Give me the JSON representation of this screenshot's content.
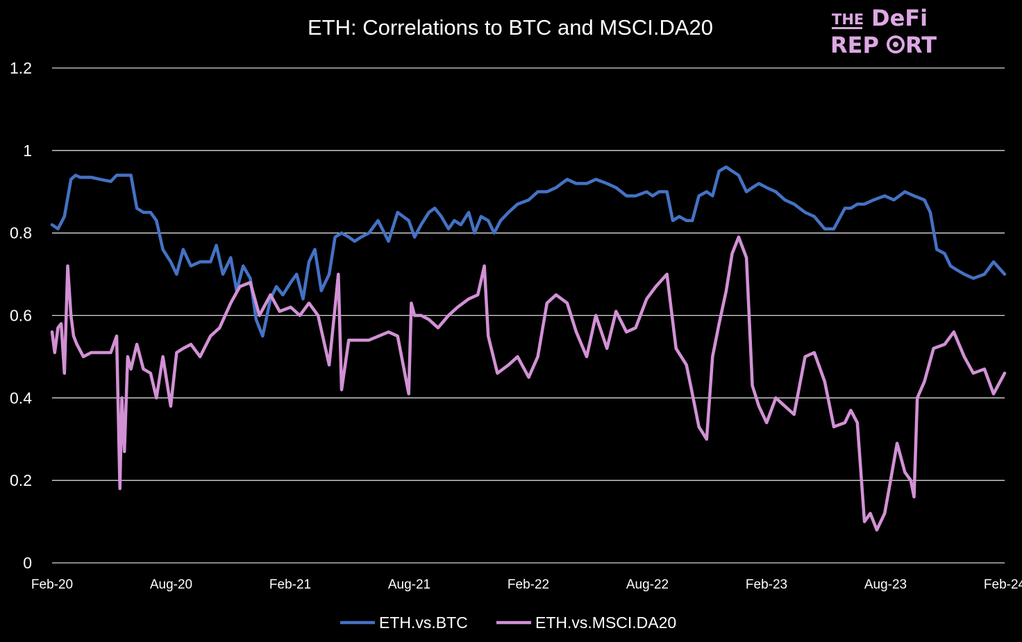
{
  "logo": {
    "line1a": "THE",
    "line1b": "DeFi",
    "line2a": "REP",
    "line2b": "RT",
    "color": "#dda8e4"
  },
  "chart_data": {
    "type": "line",
    "title": "ETH: Correlations to BTC and MSCI.DA20",
    "xlabel": "",
    "ylabel": "",
    "ylim": [
      0,
      1.2
    ],
    "yticks": [
      "0",
      "0.2",
      "0.4",
      "0.6",
      "0.8",
      "1",
      "1.2"
    ],
    "xticks": [
      "Feb-20",
      "Aug-20",
      "Feb-21",
      "Aug-21",
      "Feb-22",
      "Aug-22",
      "Feb-23",
      "Aug-23",
      "Feb-24"
    ],
    "xrange": [
      "2020-02",
      "2024-02"
    ],
    "grid": true,
    "legend_position": "bottom",
    "background": "#000000",
    "series": [
      {
        "name": "ETH.vs.BTC",
        "color": "#4472c4",
        "x": [
          "2020-02-01",
          "2020-02-10",
          "2020-02-20",
          "2020-03-01",
          "2020-03-08",
          "2020-03-15",
          "2020-04-01",
          "2020-04-15",
          "2020-05-01",
          "2020-05-10",
          "2020-05-20",
          "2020-06-01",
          "2020-06-10",
          "2020-06-20",
          "2020-07-01",
          "2020-07-10",
          "2020-07-20",
          "2020-08-01",
          "2020-08-10",
          "2020-08-20",
          "2020-09-01",
          "2020-09-15",
          "2020-10-01",
          "2020-10-10",
          "2020-10-20",
          "2020-11-01",
          "2020-11-10",
          "2020-11-20",
          "2020-12-01",
          "2020-12-10",
          "2020-12-20",
          "2021-01-01",
          "2021-01-10",
          "2021-01-20",
          "2021-02-01",
          "2021-02-10",
          "2021-02-20",
          "2021-03-01",
          "2021-03-10",
          "2021-03-20",
          "2021-04-01",
          "2021-04-10",
          "2021-04-20",
          "2021-05-01",
          "2021-05-10",
          "2021-05-20",
          "2021-06-01",
          "2021-06-15",
          "2021-07-01",
          "2021-07-15",
          "2021-08-01",
          "2021-08-10",
          "2021-08-20",
          "2021-09-01",
          "2021-09-10",
          "2021-09-20",
          "2021-10-01",
          "2021-10-10",
          "2021-10-20",
          "2021-11-01",
          "2021-11-10",
          "2021-11-20",
          "2021-12-01",
          "2021-12-10",
          "2021-12-20",
          "2022-01-01",
          "2022-01-15",
          "2022-02-01",
          "2022-02-15",
          "2022-03-01",
          "2022-03-15",
          "2022-04-01",
          "2022-04-15",
          "2022-05-01",
          "2022-05-15",
          "2022-06-01",
          "2022-06-15",
          "2022-07-01",
          "2022-07-15",
          "2022-08-01",
          "2022-08-10",
          "2022-08-20",
          "2022-09-01",
          "2022-09-10",
          "2022-09-20",
          "2022-10-01",
          "2022-10-10",
          "2022-10-20",
          "2022-11-01",
          "2022-11-10",
          "2022-11-20",
          "2022-12-01",
          "2022-12-10",
          "2022-12-20",
          "2023-01-01",
          "2023-01-10",
          "2023-01-20",
          "2023-02-01",
          "2023-02-15",
          "2023-03-01",
          "2023-03-15",
          "2023-04-01",
          "2023-04-15",
          "2023-05-01",
          "2023-05-15",
          "2023-06-01",
          "2023-06-10",
          "2023-06-20",
          "2023-07-01",
          "2023-07-15",
          "2023-08-01",
          "2023-08-15",
          "2023-09-01",
          "2023-09-15",
          "2023-10-01",
          "2023-10-10",
          "2023-10-20",
          "2023-11-01",
          "2023-11-10",
          "2023-11-20",
          "2023-12-01",
          "2023-12-15",
          "2024-01-01",
          "2024-01-15",
          "2024-02-01"
        ],
        "values": [
          0.82,
          0.81,
          0.84,
          0.93,
          0.94,
          0.935,
          0.935,
          0.93,
          0.925,
          0.94,
          0.94,
          0.94,
          0.86,
          0.85,
          0.85,
          0.83,
          0.76,
          0.73,
          0.7,
          0.76,
          0.72,
          0.73,
          0.73,
          0.77,
          0.7,
          0.74,
          0.66,
          0.72,
          0.69,
          0.59,
          0.55,
          0.64,
          0.67,
          0.65,
          0.68,
          0.7,
          0.64,
          0.73,
          0.76,
          0.66,
          0.7,
          0.79,
          0.8,
          0.79,
          0.78,
          0.79,
          0.8,
          0.83,
          0.78,
          0.85,
          0.83,
          0.79,
          0.82,
          0.85,
          0.86,
          0.84,
          0.81,
          0.83,
          0.82,
          0.85,
          0.8,
          0.84,
          0.83,
          0.8,
          0.83,
          0.85,
          0.87,
          0.88,
          0.9,
          0.9,
          0.91,
          0.93,
          0.92,
          0.92,
          0.93,
          0.92,
          0.91,
          0.89,
          0.89,
          0.9,
          0.89,
          0.9,
          0.9,
          0.83,
          0.84,
          0.83,
          0.83,
          0.89,
          0.9,
          0.89,
          0.95,
          0.96,
          0.95,
          0.94,
          0.9,
          0.91,
          0.92,
          0.91,
          0.9,
          0.88,
          0.87,
          0.85,
          0.84,
          0.81,
          0.81,
          0.86,
          0.86,
          0.87,
          0.87,
          0.88,
          0.89,
          0.88,
          0.9,
          0.89,
          0.88,
          0.85,
          0.76,
          0.75,
          0.72,
          0.71,
          0.7,
          0.69,
          0.7,
          0.73,
          0.7
        ]
      },
      {
        "name": "ETH.vs.MSCI.DA20",
        "color": "#d291d5",
        "x": [
          "2020-02-01",
          "2020-02-05",
          "2020-02-10",
          "2020-02-15",
          "2020-02-20",
          "2020-02-25",
          "2020-03-01",
          "2020-03-05",
          "2020-03-10",
          "2020-03-20",
          "2020-04-01",
          "2020-04-15",
          "2020-05-01",
          "2020-05-10",
          "2020-05-15",
          "2020-05-18",
          "2020-05-22",
          "2020-05-27",
          "2020-06-01",
          "2020-06-10",
          "2020-06-20",
          "2020-07-01",
          "2020-07-10",
          "2020-07-20",
          "2020-08-01",
          "2020-08-10",
          "2020-08-20",
          "2020-09-01",
          "2020-09-15",
          "2020-10-01",
          "2020-10-15",
          "2020-11-01",
          "2020-11-15",
          "2020-12-01",
          "2020-12-15",
          "2021-01-01",
          "2021-01-15",
          "2021-02-01",
          "2021-02-15",
          "2021-03-01",
          "2021-03-15",
          "2021-04-01",
          "2021-04-10",
          "2021-04-15",
          "2021-04-20",
          "2021-05-01",
          "2021-06-01",
          "2021-07-01",
          "2021-07-15",
          "2021-08-01",
          "2021-08-05",
          "2021-08-10",
          "2021-08-20",
          "2021-09-01",
          "2021-09-15",
          "2021-10-01",
          "2021-10-15",
          "2021-11-01",
          "2021-11-15",
          "2021-11-25",
          "2021-12-01",
          "2021-12-15",
          "2022-01-01",
          "2022-01-15",
          "2022-02-01",
          "2022-02-15",
          "2022-03-01",
          "2022-03-15",
          "2022-04-01",
          "2022-04-15",
          "2022-05-01",
          "2022-05-15",
          "2022-06-01",
          "2022-06-15",
          "2022-07-01",
          "2022-07-15",
          "2022-08-01",
          "2022-08-15",
          "2022-09-01",
          "2022-09-15",
          "2022-10-01",
          "2022-10-10",
          "2022-10-20",
          "2022-11-01",
          "2022-11-10",
          "2022-11-20",
          "2022-12-01",
          "2022-12-10",
          "2022-12-20",
          "2023-01-01",
          "2023-01-10",
          "2023-01-20",
          "2023-02-01",
          "2023-02-15",
          "2023-03-01",
          "2023-03-15",
          "2023-04-01",
          "2023-04-15",
          "2023-05-01",
          "2023-05-15",
          "2023-06-01",
          "2023-06-10",
          "2023-06-20",
          "2023-07-01",
          "2023-07-10",
          "2023-07-20",
          "2023-08-01",
          "2023-08-10",
          "2023-08-20",
          "2023-09-01",
          "2023-09-10",
          "2023-09-15",
          "2023-09-20",
          "2023-10-01",
          "2023-10-15",
          "2023-11-01",
          "2023-11-15",
          "2023-12-01",
          "2023-12-15",
          "2024-01-01",
          "2024-01-15",
          "2024-02-01"
        ],
        "values": [
          0.56,
          0.51,
          0.57,
          0.58,
          0.46,
          0.72,
          0.6,
          0.55,
          0.53,
          0.5,
          0.51,
          0.51,
          0.51,
          0.55,
          0.18,
          0.4,
          0.27,
          0.5,
          0.47,
          0.53,
          0.47,
          0.46,
          0.4,
          0.5,
          0.38,
          0.51,
          0.52,
          0.53,
          0.5,
          0.55,
          0.57,
          0.63,
          0.67,
          0.68,
          0.6,
          0.65,
          0.61,
          0.62,
          0.6,
          0.63,
          0.6,
          0.48,
          0.62,
          0.7,
          0.42,
          0.54,
          0.54,
          0.56,
          0.55,
          0.41,
          0.63,
          0.6,
          0.6,
          0.59,
          0.57,
          0.6,
          0.62,
          0.64,
          0.65,
          0.72,
          0.55,
          0.46,
          0.48,
          0.5,
          0.45,
          0.5,
          0.63,
          0.65,
          0.63,
          0.56,
          0.5,
          0.6,
          0.52,
          0.61,
          0.56,
          0.57,
          0.64,
          0.67,
          0.7,
          0.52,
          0.48,
          0.41,
          0.33,
          0.3,
          0.5,
          0.58,
          0.66,
          0.75,
          0.79,
          0.74,
          0.43,
          0.38,
          0.34,
          0.4,
          0.38,
          0.36,
          0.5,
          0.51,
          0.44,
          0.33,
          0.34,
          0.37,
          0.34,
          0.1,
          0.12,
          0.08,
          0.12,
          0.2,
          0.29,
          0.22,
          0.2,
          0.16,
          0.4,
          0.44,
          0.52,
          0.53,
          0.56,
          0.5,
          0.46,
          0.47,
          0.41,
          0.46
        ]
      }
    ]
  }
}
